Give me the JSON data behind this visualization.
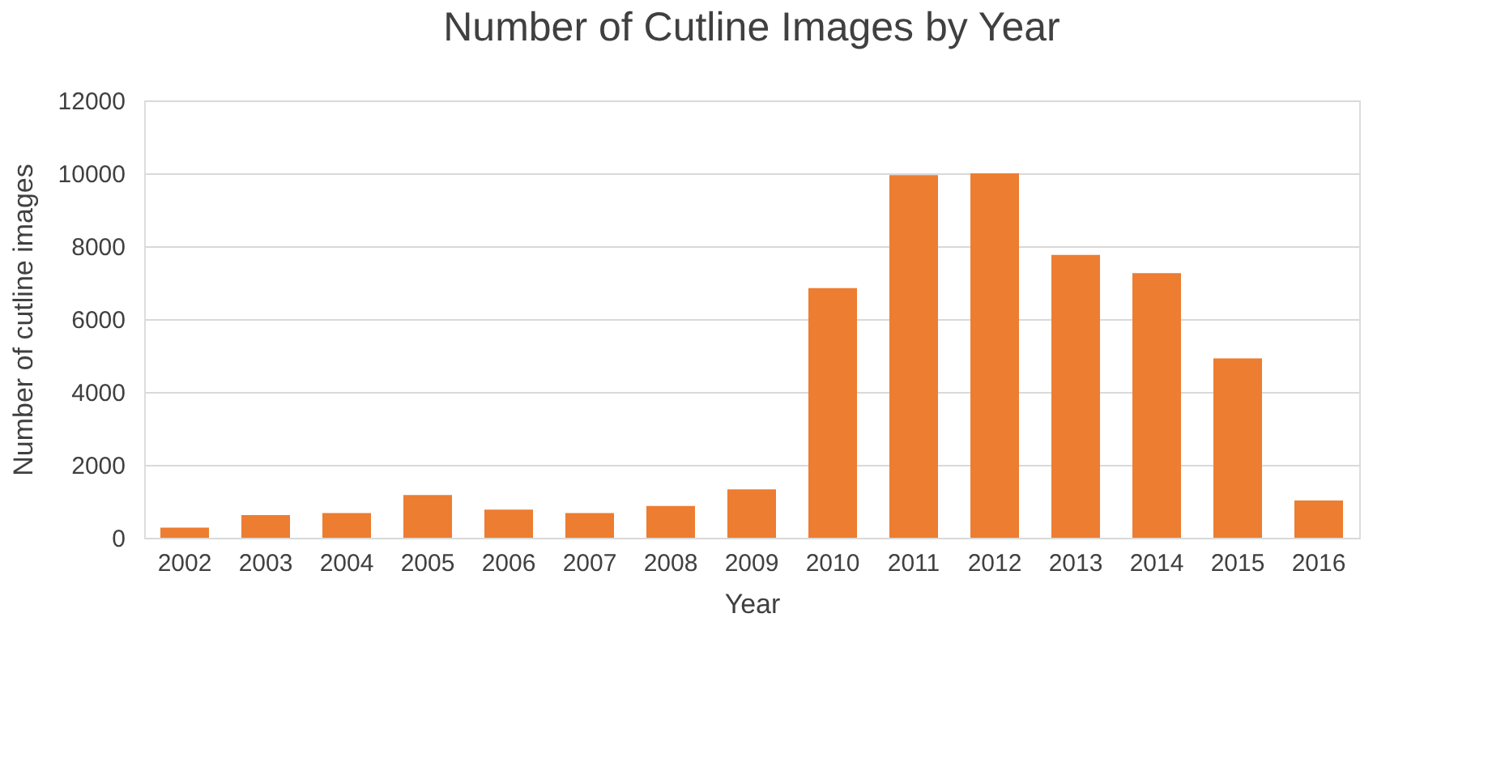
{
  "chart_data": {
    "type": "bar",
    "title": "Number of Cutline Images by Year",
    "xlabel": "Year",
    "ylabel": "Number of  cutline images",
    "categories": [
      "2002",
      "2003",
      "2004",
      "2005",
      "2006",
      "2007",
      "2008",
      "2009",
      "2010",
      "2011",
      "2012",
      "2013",
      "2014",
      "2015",
      "2016"
    ],
    "values": [
      280,
      620,
      680,
      1170,
      770,
      680,
      870,
      1330,
      6850,
      9950,
      10000,
      7760,
      7260,
      4920,
      1020
    ],
    "color": "#ed7d31",
    "ylim": [
      0,
      12000
    ],
    "yticks": [
      0,
      2000,
      4000,
      6000,
      8000,
      10000,
      12000
    ],
    "grid": "y"
  }
}
